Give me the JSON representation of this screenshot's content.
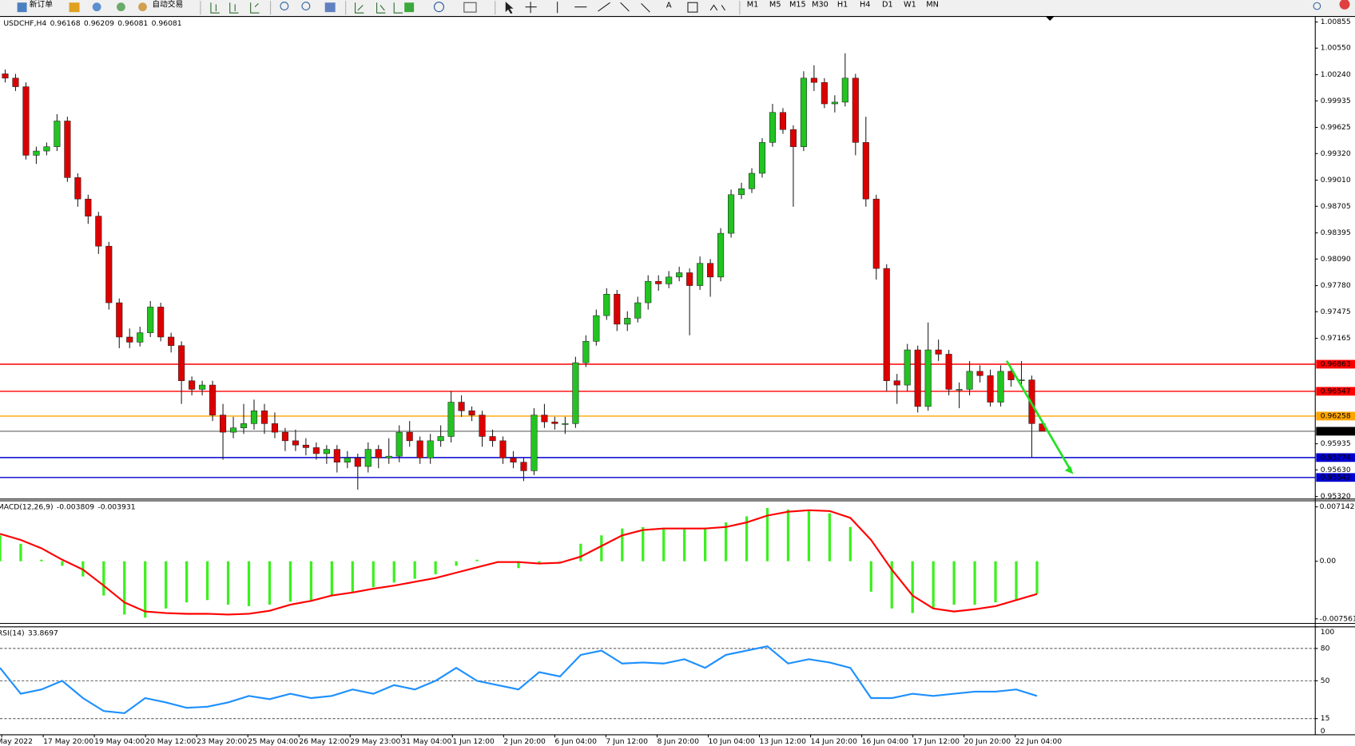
{
  "toolbar": {
    "order_button": "新订单",
    "autotrade_button": "自动交易",
    "timeframes": [
      "M1",
      "M5",
      "M15",
      "M30",
      "H1",
      "H4",
      "D1",
      "W1",
      "MN"
    ]
  },
  "chart_data": [
    {
      "type": "candlestick",
      "title": "USDCHF,H4",
      "up_color": "#22c322",
      "down_color": "#dc0000",
      "open": [
        1.0025,
        1.002,
        1.001,
        0.993,
        0.9935,
        0.994,
        0.997,
        0.9904,
        0.9879,
        0.9859,
        0.9824,
        0.9758,
        0.9718,
        0.9712,
        0.9723,
        0.9753,
        0.9718,
        0.9708,
        0.9667,
        0.9657,
        0.9662,
        0.9627,
        0.9607,
        0.9612,
        0.9617,
        0.9632,
        0.9617,
        0.9607,
        0.9597,
        0.9592,
        0.9589,
        0.9582,
        0.9587,
        0.9572,
        0.9577,
        0.9567,
        0.9587,
        0.9577,
        0.9579,
        0.9607,
        0.9597,
        0.9577,
        0.9597,
        0.9602,
        0.9642,
        0.9632,
        0.9627,
        0.9602,
        0.9597,
        0.9577,
        0.9572,
        0.9562,
        0.9627,
        0.9619,
        0.9617,
        0.9617,
        0.9688,
        0.9713,
        0.9743,
        0.9768,
        0.9733,
        0.974,
        0.9758,
        0.9783,
        0.978,
        0.9788,
        0.9793,
        0.9778,
        0.9804,
        0.9788,
        0.9839,
        0.9884,
        0.9891,
        0.9909,
        0.9945,
        0.998,
        0.996,
        0.994,
        1.002,
        1.0015,
        0.999,
        0.9992,
        1.002,
        0.9945,
        0.9879,
        0.9798,
        0.9667,
        0.9662,
        0.9703,
        0.9637,
        0.9703,
        0.9698,
        0.9657,
        0.9657,
        0.9678,
        0.9673,
        0.9642,
        0.9678,
        0.9668,
        0.9668,
        0.96168
      ],
      "high": [
        1.003,
        1.0025,
        1.0015,
        0.994,
        0.9945,
        0.9978,
        0.9975,
        0.9909,
        0.9884,
        0.9864,
        0.9829,
        0.9763,
        0.9728,
        0.973,
        0.976,
        0.9758,
        0.9723,
        0.9713,
        0.9672,
        0.9667,
        0.9667,
        0.964,
        0.9625,
        0.964,
        0.9645,
        0.964,
        0.963,
        0.9612,
        0.961,
        0.96,
        0.9595,
        0.9592,
        0.9592,
        0.9585,
        0.9582,
        0.9595,
        0.9592,
        0.96,
        0.9615,
        0.962,
        0.9602,
        0.9605,
        0.9615,
        0.9655,
        0.965,
        0.9637,
        0.9632,
        0.961,
        0.9602,
        0.9585,
        0.9577,
        0.9635,
        0.964,
        0.9625,
        0.9625,
        0.9695,
        0.972,
        0.975,
        0.9775,
        0.9773,
        0.9748,
        0.9765,
        0.979,
        0.979,
        0.9795,
        0.98,
        0.9798,
        0.9812,
        0.9809,
        0.9845,
        0.989,
        0.9898,
        0.9915,
        0.995,
        0.999,
        0.9985,
        0.9965,
        1.0028,
        1.0035,
        1.002,
        1.0,
        1.0049,
        1.0025,
        0.9975,
        0.9884,
        0.9803,
        0.9675,
        0.971,
        0.9708,
        0.9735,
        0.9715,
        0.9703,
        0.9665,
        0.969,
        0.9685,
        0.968,
        0.9685,
        0.9683,
        0.969,
        0.9673,
        0.96209
      ],
      "low": [
        1.0015,
        1.0005,
        0.9925,
        0.992,
        0.993,
        0.9935,
        0.9899,
        0.987,
        0.985,
        0.9815,
        0.975,
        0.9705,
        0.9705,
        0.9707,
        0.9718,
        0.9713,
        0.97,
        0.964,
        0.965,
        0.965,
        0.962,
        0.9575,
        0.96,
        0.9605,
        0.961,
        0.9605,
        0.96,
        0.9585,
        0.9585,
        0.958,
        0.9575,
        0.957,
        0.956,
        0.9565,
        0.954,
        0.956,
        0.9565,
        0.957,
        0.9572,
        0.959,
        0.957,
        0.957,
        0.959,
        0.9595,
        0.9625,
        0.962,
        0.959,
        0.959,
        0.957,
        0.9565,
        0.955,
        0.9557,
        0.9612,
        0.961,
        0.9605,
        0.9612,
        0.9683,
        0.9708,
        0.9738,
        0.9725,
        0.9725,
        0.9735,
        0.975,
        0.9772,
        0.9775,
        0.9783,
        0.972,
        0.9773,
        0.9765,
        0.9783,
        0.9834,
        0.9879,
        0.9886,
        0.9904,
        0.994,
        0.9955,
        0.987,
        0.9935,
        1.0005,
        0.9985,
        0.998,
        0.9987,
        0.993,
        0.987,
        0.9785,
        0.9655,
        0.964,
        0.9655,
        0.963,
        0.9632,
        0.969,
        0.965,
        0.9635,
        0.965,
        0.9665,
        0.9637,
        0.9637,
        0.966,
        0.966,
        0.9577,
        0.96081
      ],
      "close": [
        1.002,
        1.001,
        0.993,
        0.9935,
        0.994,
        0.997,
        0.9904,
        0.9879,
        0.9859,
        0.9824,
        0.9758,
        0.9718,
        0.9712,
        0.9723,
        0.9753,
        0.9718,
        0.9708,
        0.9667,
        0.9657,
        0.9662,
        0.9627,
        0.9607,
        0.9612,
        0.9617,
        0.9632,
        0.9617,
        0.9607,
        0.9597,
        0.9592,
        0.9589,
        0.9582,
        0.9587,
        0.9572,
        0.9577,
        0.9567,
        0.9587,
        0.9577,
        0.9579,
        0.9607,
        0.9597,
        0.9577,
        0.9597,
        0.9602,
        0.9642,
        0.9632,
        0.9627,
        0.9602,
        0.9597,
        0.9577,
        0.9572,
        0.9562,
        0.9627,
        0.9619,
        0.9617,
        0.9617,
        0.9688,
        0.9713,
        0.9743,
        0.9768,
        0.9733,
        0.974,
        0.9758,
        0.9783,
        0.978,
        0.9788,
        0.9793,
        0.9778,
        0.9804,
        0.9788,
        0.9839,
        0.9884,
        0.9891,
        0.9909,
        0.9945,
        0.998,
        0.996,
        0.994,
        1.002,
        1.0015,
        0.999,
        0.9992,
        1.002,
        0.9945,
        0.9879,
        0.9798,
        0.9667,
        0.9662,
        0.9703,
        0.9637,
        0.9703,
        0.9698,
        0.9657,
        0.9657,
        0.9678,
        0.9673,
        0.9642,
        0.9678,
        0.9668,
        0.9668,
        0.9617,
        0.96081
      ],
      "ylim": [
        0.9529,
        1.0091
      ],
      "yticks": [
        1.00855,
        {
          "value": 1.0055,
          "label": "1.00550"
        },
        {
          "value": 1.0024,
          "label": "1.00240"
        },
        0.99935,
        0.99625,
        {
          "value": 0.9932,
          "label": "0.99320"
        },
        {
          "value": 0.9901,
          "label": "0.99010"
        },
        0.98705,
        0.98395,
        {
          "value": 0.9809,
          "label": "0.98090"
        },
        {
          "value": 0.9778,
          "label": "0.97780"
        },
        0.97475,
        0.97165,
        0.95935,
        {
          "value": 0.9563,
          "label": "0.95630"
        },
        {
          "value": 0.9532,
          "label": "0.95320"
        }
      ],
      "levels": [
        {
          "value": 0.96863,
          "color": "#ff0000"
        },
        {
          "value": 0.96547,
          "color": "#ff0000"
        },
        {
          "value": 0.96258,
          "color": "#ffa500"
        },
        {
          "value": 0.96081,
          "color": "#808080"
        },
        {
          "value": 0.95774,
          "color": "#0000cd"
        },
        {
          "value": 0.95542,
          "color": "#0000cd"
        }
      ],
      "time_labels": [
        "May 2022",
        "17 May 20:00",
        "19 May 04:00",
        "20 May 12:00",
        "23 May 20:00",
        "25 May 04:00",
        "26 May 12:00",
        "29 May 23:00",
        "31 May 04:00",
        "1 Jun 12:00",
        "2 Jun 20:00",
        "6 Jun 04:00",
        "7 Jun 12:00",
        "8 Jun 20:00",
        "10 Jun 04:00",
        "13 Jun 12:00",
        "14 Jun 20:00",
        "16 Jun 04:00",
        "17 Jun 12:00",
        "20 Jun 20:00",
        "22 Jun 04:00"
      ]
    },
    {
      "type": "macd",
      "title": "MACD(12,26,9)",
      "readout": [
        -0.003809,
        -0.003931
      ],
      "histogram": {
        "color": "#3cf01e",
        "values": [
          0.0034,
          0.0023,
          0.0002,
          -0.0006,
          -0.002,
          -0.0045,
          -0.007,
          -0.0074,
          -0.0062,
          -0.0054,
          -0.0051,
          -0.0057,
          -0.0059,
          -0.0057,
          -0.0053,
          -0.0051,
          -0.0045,
          -0.004,
          -0.0034,
          -0.0028,
          -0.0023,
          -0.0017,
          -0.0006,
          0.0002,
          -0.0002,
          -0.0009,
          -0.0002,
          0.0,
          0.0023,
          0.0034,
          0.0043,
          0.0045,
          0.0044,
          0.0043,
          0.0044,
          0.0051,
          0.0059,
          0.007,
          0.0068,
          0.0066,
          0.0063,
          0.0045,
          -0.004,
          -0.0062,
          -0.0068,
          -0.0062,
          -0.0057,
          -0.0057,
          -0.0054,
          -0.0051,
          -0.0043
        ]
      },
      "signal": {
        "color": "#ff0000",
        "values": [
          0.0036,
          0.0028,
          0.0017,
          0.0002,
          -0.0011,
          -0.0032,
          -0.0054,
          -0.0066,
          -0.0068,
          -0.0069,
          -0.0069,
          -0.007,
          -0.0069,
          -0.0065,
          -0.0057,
          -0.0052,
          -0.0045,
          -0.0041,
          -0.0036,
          -0.0032,
          -0.0027,
          -0.0022,
          -0.0015,
          -0.0008,
          -0.0001,
          -0.0001,
          -0.0003,
          -0.0002,
          0.0006,
          0.002,
          0.0034,
          0.0041,
          0.0043,
          0.0043,
          0.0043,
          0.0045,
          0.0051,
          0.006,
          0.0065,
          0.0067,
          0.0066,
          0.0057,
          0.0028,
          -0.0011,
          -0.0045,
          -0.0062,
          -0.0066,
          -0.0063,
          -0.0059,
          -0.0051,
          -0.0043
        ]
      },
      "ylim": [
        -0.00816,
        0.00794
      ],
      "yticks": [
        0.007142,
        {
          "value": 0,
          "label": "0.00"
        },
        -0.007561
      ]
    },
    {
      "type": "line",
      "title": "RSI(14)",
      "readout": [
        33.8697
      ],
      "color": "#1e90ff",
      "values": [
        62,
        38,
        42,
        50,
        34,
        22,
        20,
        34,
        30,
        25,
        26,
        30,
        36,
        33,
        38,
        34,
        36,
        42,
        38,
        46,
        42,
        50,
        62,
        50,
        46,
        42,
        58,
        54,
        74,
        78,
        66,
        67,
        66,
        70,
        62,
        74,
        78,
        82,
        66,
        70,
        67,
        62,
        34,
        34,
        38,
        36,
        38,
        40,
        40,
        42,
        36
      ],
      "ylim": [
        0,
        100
      ],
      "yticks": [
        100,
        80,
        50,
        15,
        0
      ]
    }
  ]
}
